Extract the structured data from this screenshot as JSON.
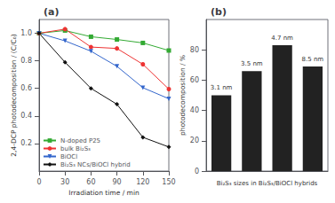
{
  "chart_data": [
    {
      "type": "line",
      "title": "(a)",
      "xlabel": "Irradiation time / min",
      "ylabel": "2,4-DCP photodecomposition / (C/C₀)",
      "x": [
        0,
        30,
        60,
        90,
        120,
        150
      ],
      "series": [
        {
          "name": "N-doped P25",
          "color": "#33aa33",
          "marker": "square",
          "values": [
            1.0,
            1.02,
            0.975,
            0.955,
            0.93,
            0.875
          ]
        },
        {
          "name": "bulk Bi₂S₃",
          "color": "#ee3333",
          "marker": "circle",
          "values": [
            1.0,
            1.03,
            0.9,
            0.89,
            0.775,
            0.595
          ]
        },
        {
          "name": "BiOCl",
          "color": "#3366cc",
          "marker": "triangle_down",
          "values": [
            1.0,
            0.945,
            0.87,
            0.76,
            0.605,
            0.525
          ]
        },
        {
          "name": "Bi₂S₃ NCs/BiOCl hybrid",
          "color": "#111111",
          "marker": "diamond",
          "values": [
            1.0,
            0.79,
            0.6,
            0.485,
            0.245,
            0.175
          ]
        }
      ],
      "xlim": [
        0,
        150
      ],
      "ylim": [
        0.0,
        1.1
      ],
      "xticks": [
        0,
        30,
        60,
        90,
        120,
        150
      ],
      "yticks": [
        {
          "value": 0.2,
          "label": "0.2"
        },
        {
          "value": 0.4,
          "label": "0.4"
        },
        {
          "value": 0.6,
          "label": "0.6"
        },
        {
          "value": 0.8,
          "label": "0.8"
        },
        {
          "value": 1.0,
          "label": "1.0"
        }
      ],
      "legend": "lower left",
      "grid": false
    },
    {
      "type": "bar",
      "title": "(b)",
      "xlabel": "Bi₂S₃ sizes in Bi₂S₃/BiOCl hybrids",
      "ylabel": "photodecomposition / %",
      "categories": [
        "3.1 nm",
        "3.5 nm",
        "4.7 nm",
        "8.5 nm"
      ],
      "values": [
        50,
        66,
        83,
        69
      ],
      "color": "#222222",
      "ylim": [
        0,
        100
      ],
      "yticks": [
        0,
        20,
        40,
        60,
        80
      ],
      "grid": false,
      "tick_labels": "y"
    }
  ]
}
